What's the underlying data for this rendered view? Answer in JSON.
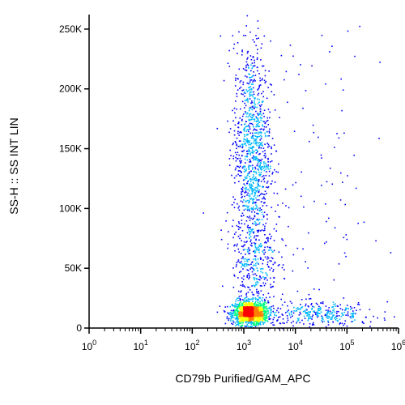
{
  "chart_data": {
    "type": "scatter",
    "subtype": "flow-cytometry-density-dot-plot",
    "xlabel": "CD79b Purified/GAM_APC",
    "ylabel": "SS-H :: SS INT LIN",
    "x_scale": "log",
    "y_scale": "linear",
    "xlim": [
      1,
      1000000
    ],
    "ylim": [
      0,
      262144
    ],
    "x_ticks": [
      {
        "base": "10",
        "exp": "0",
        "value": 1
      },
      {
        "base": "10",
        "exp": "1",
        "value": 10
      },
      {
        "base": "10",
        "exp": "2",
        "value": 100
      },
      {
        "base": "10",
        "exp": "3",
        "value": 1000
      },
      {
        "base": "10",
        "exp": "4",
        "value": 10000
      },
      {
        "base": "10",
        "exp": "5",
        "value": 100000
      },
      {
        "base": "10",
        "exp": "6",
        "value": 1000000
      }
    ],
    "y_ticks": [
      {
        "label": "0",
        "value": 0
      },
      {
        "label": "50K",
        "value": 50000
      },
      {
        "label": "100K",
        "value": 100000
      },
      {
        "label": "150K",
        "value": 150000
      },
      {
        "label": "200K",
        "value": 200000
      },
      {
        "label": "250K",
        "value": 250000
      }
    ],
    "populations": [
      {
        "x_center": 1300,
        "x_spread_decades": 0.17,
        "y_center": 13000,
        "y_spread": 5000,
        "weight": 0.44
      },
      {
        "x_center": 1400,
        "x_spread_decades": 0.18,
        "y_center": 150000,
        "y_spread": 45000,
        "weight": 0.32
      },
      {
        "x_center": 1600,
        "x_spread_decades": 0.22,
        "y_center": 55000,
        "y_spread": 22000,
        "weight": 0.1
      },
      {
        "x_center": 30000,
        "x_spread_decades": 0.55,
        "y_center": 12000,
        "y_spread": 5000,
        "weight": 0.1
      },
      {
        "x_center": 20000,
        "x_spread_decades": 0.75,
        "y_center": 110000,
        "y_spread": 80000,
        "weight": 0.04
      }
    ],
    "density_colors": [
      "#0000ff",
      "#00b8ff",
      "#00ff80",
      "#ffff00",
      "#ff8000",
      "#ff0000"
    ],
    "grid": false,
    "legend": "none"
  }
}
